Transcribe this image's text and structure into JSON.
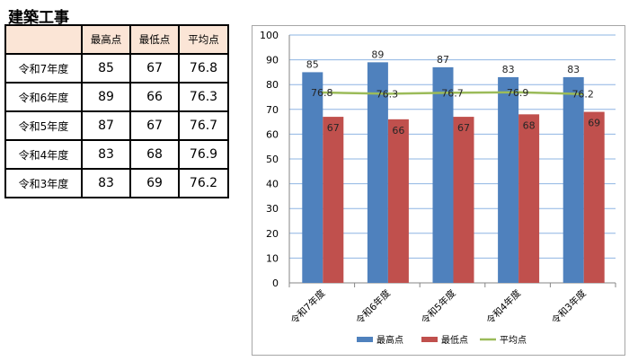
{
  "title": "建築工事",
  "table": {
    "headers": [
      "",
      "最高点",
      "最低点",
      "平均点"
    ],
    "rows": [
      [
        "令和7年度",
        "85",
        "67",
        "76.8"
      ],
      [
        "令和6年度",
        "89",
        "66",
        "76.3"
      ],
      [
        "令和5年度",
        "87",
        "67",
        "76.7"
      ],
      [
        "令和4年度",
        "83",
        "68",
        "76.9"
      ],
      [
        "令和3年度",
        "83",
        "69",
        "76.2"
      ]
    ]
  },
  "chart_data": {
    "type": "bar",
    "categories": [
      "令和7年度",
      "令和6年度",
      "令和5年度",
      "令和4年度",
      "令和3年度"
    ],
    "series": [
      {
        "name": "最高点",
        "kind": "bar",
        "color": "#4f81bd",
        "values": [
          85,
          89,
          87,
          83,
          83
        ]
      },
      {
        "name": "最低点",
        "kind": "bar",
        "color": "#c0504d",
        "values": [
          67,
          66,
          67,
          68,
          69
        ]
      },
      {
        "name": "平均点",
        "kind": "line",
        "color": "#9bbb59",
        "values": [
          76.8,
          76.3,
          76.7,
          76.9,
          76.2
        ]
      }
    ],
    "ylim": [
      0,
      100
    ],
    "yticks": [
      0,
      10,
      20,
      30,
      40,
      50,
      60,
      70,
      80,
      90,
      100
    ],
    "gridlines": true,
    "legend": "bottom",
    "xlabel": "",
    "ylabel": ""
  }
}
